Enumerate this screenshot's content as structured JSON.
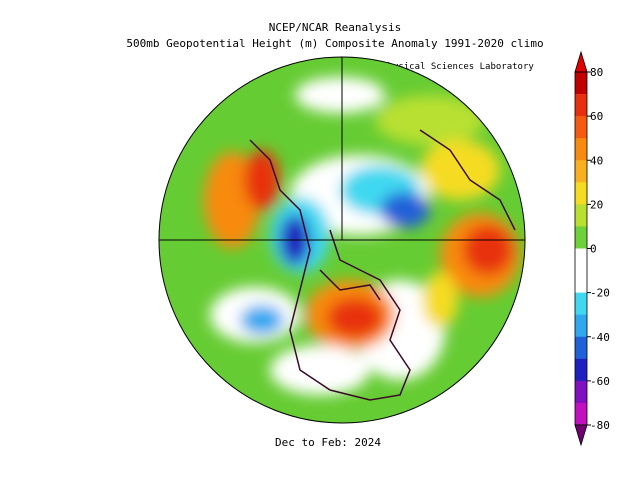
{
  "header": {
    "title": "NCEP/NCAR Reanalysis",
    "subtitle": "500mb Geopotential Height (m) Composite Anomaly 1991-2020 climo",
    "credit": "NOAA Physical Sciences Laboratory"
  },
  "footer": {
    "period": "Dec to Feb: 2024"
  },
  "colorbar": {
    "ticks": [
      80,
      60,
      40,
      20,
      0,
      -20,
      -40,
      -60,
      -80
    ],
    "colors": [
      "#c00000",
      "#e83010",
      "#f55a10",
      "#f88a10",
      "#f9b020",
      "#f5dc20",
      "#b8e030",
      "#6ed13a",
      "#ffffff",
      "#ffffff",
      "#40d8f0",
      "#30a8f0",
      "#2060d8",
      "#2020c0",
      "#8010c0",
      "#c010c0"
    ],
    "top_color": "#e00000",
    "bottom_color": "#700070"
  }
}
